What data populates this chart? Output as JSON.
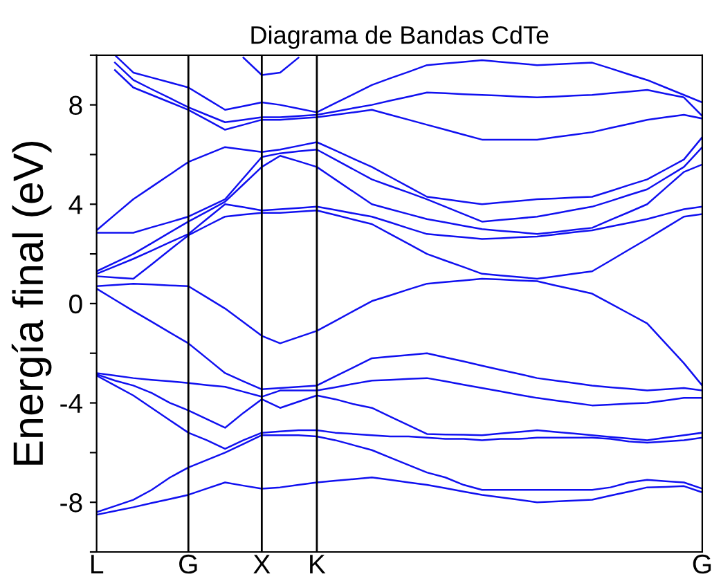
{
  "chart_data": {
    "type": "line",
    "title": "Diagrama de Bandas CdTe",
    "ylabel": "Energía final (eV)",
    "categories": [
      "L",
      null,
      null,
      null,
      null,
      "G",
      null,
      null,
      null,
      "X",
      null,
      null,
      "K",
      null,
      null,
      null,
      null,
      null,
      null,
      null,
      null,
      null,
      null,
      null,
      null,
      null,
      null,
      null,
      null,
      null,
      null,
      null,
      null,
      "G"
    ],
    "ylim": [
      -10,
      10
    ],
    "yticks": [
      {
        "value": -10,
        "label": null
      },
      -8,
      {
        "value": -6,
        "label": null
      },
      -4,
      {
        "value": -2,
        "label": null
      },
      0,
      {
        "value": 2,
        "label": null
      },
      4,
      {
        "value": 6,
        "label": null
      },
      8,
      {
        "value": 10,
        "label": null
      }
    ],
    "grid": false,
    "legend": false,
    "marker": "none",
    "line_style": "solid",
    "ref_lines": [
      {
        "axis": "x",
        "value": "G",
        "color": "#000000"
      },
      {
        "axis": "x",
        "value": "X",
        "color": "#000000"
      },
      {
        "axis": "x",
        "value": "K",
        "color": "#000000"
      }
    ],
    "series": [
      {
        "color": "#1010f0",
        "values": [
          -8.5,
          -8.35,
          -8.2,
          -8.03,
          -7.87,
          -7.7,
          -7.45,
          -7.2,
          -7.33,
          -7.45,
          -7.4,
          -7.3,
          -7.2,
          -7.13,
          -7.07,
          -7.0,
          -7.1,
          -7.2,
          -7.3,
          -7.43,
          -7.57,
          -7.7,
          -7.8,
          -7.9,
          -8.0,
          -7.97,
          -7.93,
          -7.9,
          -7.73,
          -7.57,
          -7.4,
          -7.38,
          -7.35,
          -7.6
        ]
      },
      {
        "color": "#1010f0",
        "values": [
          -8.4,
          -8.15,
          -7.9,
          -7.5,
          -7.0,
          -6.6,
          -6.3,
          -6.0,
          -5.65,
          -5.3,
          -5.3,
          -5.3,
          -5.35,
          -5.5,
          -5.7,
          -5.9,
          -6.2,
          -6.5,
          -6.8,
          -7.0,
          -7.3,
          -7.5,
          -7.5,
          -7.5,
          -7.5,
          -7.5,
          -7.5,
          -7.5,
          -7.4,
          -7.2,
          -7.1,
          -7.15,
          -7.2,
          -7.45
        ]
      },
      {
        "color": "#1010f0",
        "values": [
          -2.9,
          -3.3,
          -3.7,
          -4.2,
          -4.7,
          -5.2,
          -5.5,
          -5.85,
          -5.5,
          -5.2,
          -5.15,
          -5.1,
          -5.1,
          -5.2,
          -5.25,
          -5.3,
          -5.35,
          -5.35,
          -5.4,
          -5.45,
          -5.45,
          -5.5,
          -5.45,
          -5.45,
          -5.4,
          -5.4,
          -5.4,
          -5.4,
          -5.45,
          -5.55,
          -5.6,
          -5.55,
          -5.5,
          -5.4
        ]
      },
      {
        "color": "#1010f0",
        "values": [
          -2.85,
          -3.1,
          -3.3,
          -3.6,
          -4.0,
          -4.3,
          -4.65,
          -5.0,
          -4.4,
          -3.85,
          -4.2,
          -3.95,
          -3.7,
          -3.85,
          -4.05,
          -4.2,
          -4.55,
          -4.9,
          -5.25,
          -5.27,
          -5.28,
          -5.3,
          -5.23,
          -5.17,
          -5.1,
          -5.17,
          -5.23,
          -5.3,
          -5.37,
          -5.43,
          -5.5,
          -5.4,
          -5.3,
          -5.2
        ]
      },
      {
        "color": "#1010f0",
        "values": [
          -2.8,
          -2.9,
          -3.0,
          -3.07,
          -3.13,
          -3.2,
          -3.28,
          -3.35,
          -3.55,
          -3.75,
          -3.5,
          -3.5,
          -3.5,
          -3.37,
          -3.23,
          -3.1,
          -3.07,
          -3.03,
          -3.0,
          -3.13,
          -3.27,
          -3.4,
          -3.53,
          -3.67,
          -3.8,
          -3.9,
          -4.0,
          -4.1,
          -4.07,
          -4.03,
          -4.0,
          -3.9,
          -3.8,
          -3.8
        ]
      },
      {
        "color": "#1010f0",
        "values": [
          0.6,
          0.15,
          -0.3,
          -0.73,
          -1.17,
          -1.6,
          -2.2,
          -2.8,
          -3.13,
          -3.45,
          -3.4,
          -3.35,
          -3.3,
          -2.93,
          -2.57,
          -2.2,
          -2.13,
          -2.07,
          -2.0,
          -2.17,
          -2.33,
          -2.5,
          -2.67,
          -2.83,
          -3.0,
          -3.1,
          -3.2,
          -3.3,
          -3.37,
          -3.43,
          -3.5,
          -3.45,
          -3.4,
          -3.5
        ]
      },
      {
        "color": "#1010f0",
        "values": [
          0.7,
          0.75,
          0.8,
          0.77,
          0.73,
          0.7,
          0.25,
          -0.2,
          -0.75,
          -1.3,
          -1.6,
          -1.35,
          -1.1,
          -0.7,
          -0.3,
          0.1,
          0.33,
          0.57,
          0.8,
          0.87,
          0.93,
          1.0,
          0.97,
          0.93,
          0.9,
          0.73,
          0.57,
          0.4,
          0.0,
          -0.4,
          -0.8,
          -1.6,
          -2.4,
          -3.3
        ]
      },
      {
        "color": "#1010f0",
        "values": [
          1.1,
          1.05,
          1.0,
          1.58,
          2.17,
          2.75,
          3.13,
          3.5,
          3.58,
          3.65,
          3.65,
          3.7,
          3.75,
          3.57,
          3.38,
          3.2,
          2.8,
          2.4,
          2.0,
          1.73,
          1.47,
          1.2,
          1.13,
          1.07,
          1.0,
          1.1,
          1.2,
          1.3,
          1.73,
          2.17,
          2.6,
          3.05,
          3.5,
          3.6
        ]
      },
      {
        "color": "#1010f0",
        "values": [
          1.2,
          1.5,
          1.8,
          2.13,
          2.47,
          2.8,
          3.4,
          4.0,
          3.88,
          3.75,
          3.8,
          3.85,
          3.9,
          3.77,
          3.63,
          3.5,
          3.27,
          3.03,
          2.8,
          2.73,
          2.67,
          2.6,
          2.63,
          2.67,
          2.7,
          2.78,
          2.87,
          2.95,
          3.1,
          3.25,
          3.4,
          3.6,
          3.8,
          3.9
        ]
      },
      {
        "color": "#1010f0",
        "values": [
          1.3,
          1.65,
          2.0,
          2.43,
          2.87,
          3.3,
          3.7,
          4.1,
          4.8,
          5.5,
          5.95,
          5.73,
          5.5,
          5.0,
          4.5,
          4.0,
          3.8,
          3.6,
          3.4,
          3.27,
          3.13,
          3.0,
          2.93,
          2.87,
          2.8,
          2.88,
          2.97,
          3.05,
          3.37,
          3.68,
          4.0,
          4.65,
          5.3,
          5.6
        ]
      },
      {
        "color": "#1010f0",
        "values": [
          2.85,
          2.85,
          2.85,
          3.07,
          3.28,
          3.5,
          3.85,
          4.2,
          5.05,
          5.9,
          6.05,
          6.13,
          6.2,
          5.8,
          5.4,
          5.0,
          4.73,
          4.47,
          4.2,
          3.9,
          3.6,
          3.3,
          3.37,
          3.43,
          3.5,
          3.63,
          3.77,
          3.9,
          4.13,
          4.37,
          4.6,
          5.05,
          5.5,
          6.3
        ]
      },
      {
        "color": "#1010f0",
        "values": [
          2.95,
          3.58,
          4.2,
          4.7,
          5.2,
          5.7,
          6.0,
          6.3,
          6.2,
          6.1,
          6.2,
          6.35,
          6.5,
          6.17,
          5.83,
          5.5,
          5.1,
          4.7,
          4.3,
          4.2,
          4.1,
          4.0,
          4.07,
          4.13,
          4.2,
          4.23,
          4.27,
          4.3,
          4.53,
          4.77,
          5.0,
          5.4,
          5.8,
          6.7
        ]
      },
      {
        "color": "#1010f0",
        "values": [
          null,
          9.4,
          8.7,
          8.4,
          8.1,
          7.8,
          7.4,
          7.0,
          7.2,
          7.4,
          7.4,
          7.45,
          7.5,
          7.6,
          7.7,
          7.8,
          7.6,
          7.4,
          7.2,
          7.0,
          6.8,
          6.6,
          6.6,
          6.6,
          6.6,
          6.7,
          6.8,
          6.9,
          7.07,
          7.23,
          7.4,
          7.5,
          7.6,
          7.45
        ]
      },
      {
        "color": "#1010f0",
        "values": [
          null,
          9.7,
          9.0,
          8.63,
          8.27,
          7.9,
          7.6,
          7.3,
          7.4,
          7.5,
          7.5,
          7.55,
          7.6,
          7.73,
          7.87,
          8.0,
          8.17,
          8.33,
          8.5,
          8.47,
          8.43,
          8.4,
          8.37,
          8.33,
          8.3,
          8.33,
          8.37,
          8.4,
          8.47,
          8.53,
          8.6,
          8.45,
          8.3,
          7.55
        ]
      },
      {
        "color": "#1010f0",
        "values": [
          null,
          10.0,
          9.3,
          9.1,
          8.9,
          8.7,
          8.25,
          7.8,
          7.95,
          8.1,
          8.0,
          7.85,
          7.7,
          8.07,
          8.43,
          8.8,
          9.07,
          9.33,
          9.6,
          9.67,
          9.73,
          9.8,
          9.73,
          9.67,
          9.6,
          9.63,
          9.67,
          9.7,
          9.47,
          9.23,
          9.0,
          8.7,
          8.4,
          8.1
        ]
      },
      {
        "color": "#1010f0",
        "values": [
          null,
          null,
          null,
          null,
          null,
          null,
          null,
          null,
          9.9,
          9.2,
          9.3,
          9.9,
          null,
          null,
          null,
          null,
          null,
          null,
          null,
          null,
          null,
          null,
          null,
          null,
          null,
          null,
          null,
          null,
          null,
          null,
          null,
          null,
          null,
          null
        ]
      }
    ]
  }
}
